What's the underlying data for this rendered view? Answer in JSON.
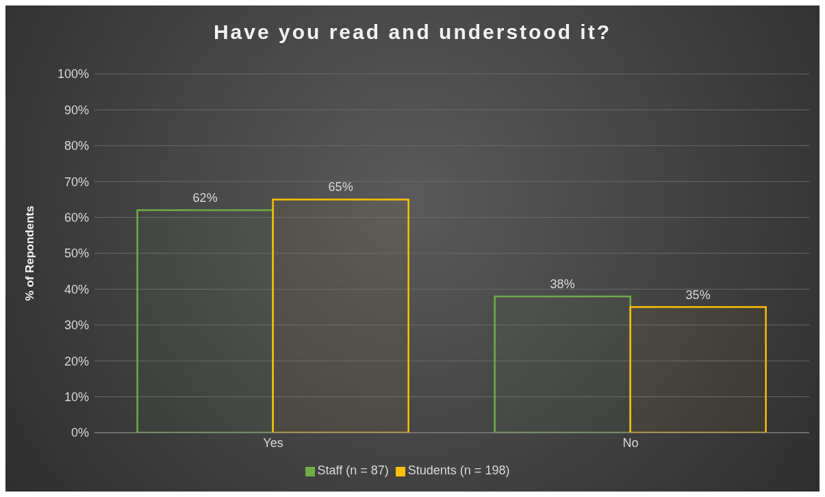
{
  "chart_data": {
    "type": "bar",
    "title": "Have you read and understood it?",
    "ylabel": "% of Repondents",
    "categories": [
      "Yes",
      "No"
    ],
    "series": [
      {
        "name": "Staff (n = 87)",
        "color": "#70ad47",
        "values": [
          62,
          38
        ],
        "value_labels": [
          "62%",
          "38%"
        ]
      },
      {
        "name": "Students (n = 198)",
        "color": "#ffc000",
        "values": [
          65,
          35
        ],
        "value_labels": [
          "65%",
          "35%"
        ]
      }
    ],
    "ylim": [
      0,
      100
    ],
    "yticks": [
      {
        "value": 0,
        "label": "0%"
      },
      {
        "value": 10,
        "label": "10%"
      },
      {
        "value": 20,
        "label": "20%"
      },
      {
        "value": 30,
        "label": "30%"
      },
      {
        "value": 40,
        "label": "40%"
      },
      {
        "value": 50,
        "label": "50%"
      },
      {
        "value": 60,
        "label": "60%"
      },
      {
        "value": 70,
        "label": "70%"
      },
      {
        "value": 80,
        "label": "80%"
      },
      {
        "value": 90,
        "label": "90%"
      },
      {
        "value": 100,
        "label": "100%"
      }
    ],
    "grid": "y",
    "legend": "bottom"
  }
}
